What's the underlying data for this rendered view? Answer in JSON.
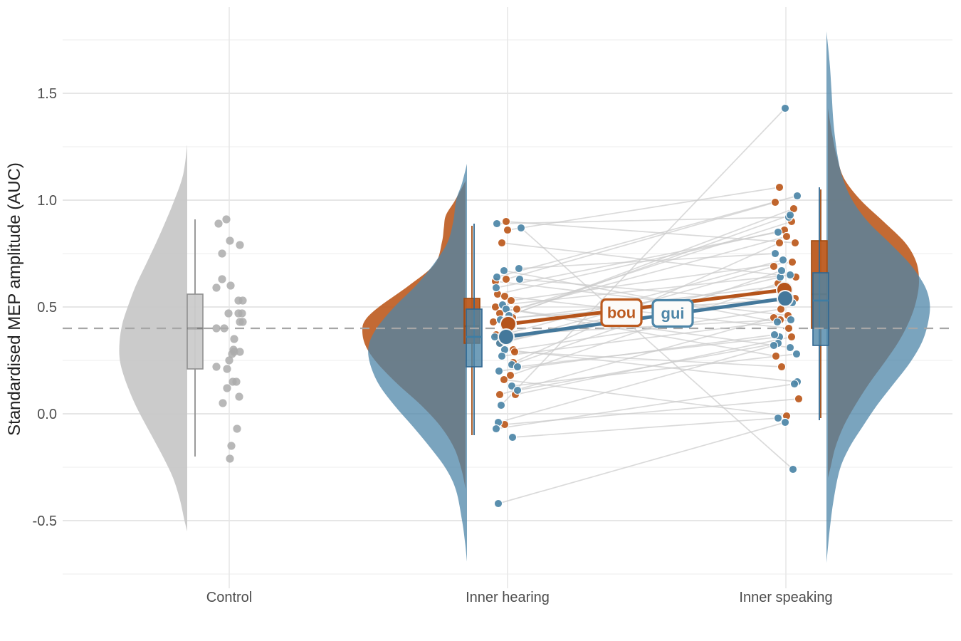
{
  "chart_data": {
    "type": "raincloud",
    "ylabel": "Standardised MEP amplitude (AUC)",
    "categories": [
      "Control",
      "Inner hearing",
      "Inner speaking"
    ],
    "y_tick_labels": [
      "-0.5",
      "0.0",
      "0.5",
      "1.0",
      "1.5"
    ],
    "y_tick_values": [
      -0.5,
      0.0,
      0.5,
      1.0,
      1.5
    ],
    "y_minor_values": [
      -0.75,
      -0.25,
      0.25,
      0.75,
      1.25,
      1.75
    ],
    "ylim": [
      -0.77,
      1.9
    ],
    "reference_line": 0.4,
    "legend_position": "inline-labels",
    "grid": true,
    "colors": {
      "bou": "#BC5A1E",
      "bou_dark": "#A04A10",
      "gui": "#4E86A8",
      "gui_dark": "#2F6690",
      "control": "#ABABAB",
      "control_fill": "#C7C7C7",
      "control_dark": "#8F8F8F",
      "pair_line": "#CCCCCC",
      "reference_dash": "#A6A6A6",
      "grid_major": "#E3E3E3",
      "grid_minor": "#F0F0F0",
      "grid_vertical": "#E6E6E6"
    },
    "groups": [
      {
        "id": "bou",
        "label": "bou"
      },
      {
        "id": "gui",
        "label": "gui"
      }
    ],
    "control": {
      "violin": [
        [
          1.26,
          0
        ],
        [
          1.12,
          0.06
        ],
        [
          1.0,
          0.19
        ],
        [
          0.9,
          0.32
        ],
        [
          0.8,
          0.46
        ],
        [
          0.7,
          0.61
        ],
        [
          0.6,
          0.76
        ],
        [
          0.5,
          0.88
        ],
        [
          0.42,
          0.96
        ],
        [
          0.34,
          1.0
        ],
        [
          0.26,
          1.0
        ],
        [
          0.18,
          0.94
        ],
        [
          0.08,
          0.82
        ],
        [
          0.0,
          0.7
        ],
        [
          -0.1,
          0.53
        ],
        [
          -0.2,
          0.36
        ],
        [
          -0.3,
          0.21
        ],
        [
          -0.4,
          0.11
        ],
        [
          -0.5,
          0.04
        ],
        [
          -0.55,
          0
        ]
      ],
      "box": {
        "q1": 0.21,
        "median": 0.4,
        "q3": 0.56,
        "lo": -0.2,
        "hi": 0.91
      },
      "points": [
        [
          0.91,
          -4
        ],
        [
          0.89,
          -15
        ],
        [
          0.81,
          1
        ],
        [
          0.79,
          15
        ],
        [
          0.75,
          -10
        ],
        [
          0.63,
          -10
        ],
        [
          0.6,
          2
        ],
        [
          0.59,
          -18
        ],
        [
          0.53,
          13
        ],
        [
          0.53,
          19
        ],
        [
          0.47,
          -1
        ],
        [
          0.47,
          13
        ],
        [
          0.47,
          18
        ],
        [
          0.43,
          15
        ],
        [
          0.43,
          19
        ],
        [
          0.4,
          -18
        ],
        [
          0.4,
          -7
        ],
        [
          0.35,
          7
        ],
        [
          0.3,
          6
        ],
        [
          0.29,
          7
        ],
        [
          0.29,
          15
        ],
        [
          0.28,
          4
        ],
        [
          0.25,
          0
        ],
        [
          0.22,
          -18
        ],
        [
          0.21,
          -3
        ],
        [
          0.15,
          5
        ],
        [
          0.15,
          10
        ],
        [
          0.12,
          -3
        ],
        [
          0.08,
          14
        ],
        [
          0.05,
          -9
        ],
        [
          -0.07,
          11
        ],
        [
          -0.15,
          3
        ],
        [
          -0.21,
          1
        ]
      ]
    },
    "inner_hearing": {
      "bou": {
        "violin": [
          [
            1.09,
            0
          ],
          [
            1.0,
            0.1
          ],
          [
            0.93,
            0.19
          ],
          [
            0.87,
            0.21
          ],
          [
            0.8,
            0.23
          ],
          [
            0.7,
            0.3
          ],
          [
            0.6,
            0.55
          ],
          [
            0.5,
            0.84
          ],
          [
            0.44,
            0.97
          ],
          [
            0.39,
            1.0
          ],
          [
            0.32,
            0.97
          ],
          [
            0.24,
            0.86
          ],
          [
            0.14,
            0.66
          ],
          [
            0.04,
            0.43
          ],
          [
            -0.06,
            0.24
          ],
          [
            -0.16,
            0.11
          ],
          [
            -0.26,
            0.04
          ],
          [
            -0.35,
            0
          ]
        ],
        "box": {
          "q1": 0.33,
          "median": 0.41,
          "q3": 0.54,
          "lo": -0.1,
          "hi": 0.88
        },
        "mean": 0.42
      },
      "gui": {
        "violin": [
          [
            1.17,
            0
          ],
          [
            1.08,
            0.05
          ],
          [
            1.0,
            0.11
          ],
          [
            0.9,
            0.14
          ],
          [
            0.8,
            0.2
          ],
          [
            0.7,
            0.34
          ],
          [
            0.6,
            0.52
          ],
          [
            0.5,
            0.74
          ],
          [
            0.4,
            0.92
          ],
          [
            0.32,
            1.0
          ],
          [
            0.24,
            0.99
          ],
          [
            0.14,
            0.9
          ],
          [
            0.04,
            0.74
          ],
          [
            -0.06,
            0.55
          ],
          [
            -0.16,
            0.37
          ],
          [
            -0.26,
            0.21
          ],
          [
            -0.36,
            0.11
          ],
          [
            -0.5,
            0.05
          ],
          [
            -0.6,
            0.02
          ],
          [
            -0.69,
            0
          ]
        ],
        "box": {
          "q1": 0.22,
          "median": 0.36,
          "q3": 0.49,
          "lo": -0.1,
          "hi": 0.89
        },
        "mean": 0.36
      }
    },
    "inner_speaking": {
      "bou": {
        "violin": [
          [
            1.43,
            0
          ],
          [
            1.3,
            0.05
          ],
          [
            1.2,
            0.1
          ],
          [
            1.1,
            0.18
          ],
          [
            1.0,
            0.36
          ],
          [
            0.9,
            0.61
          ],
          [
            0.8,
            0.85
          ],
          [
            0.71,
            0.97
          ],
          [
            0.62,
            1.0
          ],
          [
            0.53,
            0.97
          ],
          [
            0.44,
            0.9
          ],
          [
            0.34,
            0.78
          ],
          [
            0.24,
            0.62
          ],
          [
            0.14,
            0.45
          ],
          [
            0.04,
            0.3
          ],
          [
            -0.06,
            0.17
          ],
          [
            -0.16,
            0.08
          ],
          [
            -0.25,
            0.03
          ],
          [
            -0.3,
            0
          ]
        ],
        "box": {
          "q1": 0.4,
          "median": 0.56,
          "q3": 0.81,
          "lo": -0.02,
          "hi": 1.05
        },
        "mean": 0.58
      },
      "gui": {
        "violin": [
          [
            1.79,
            0
          ],
          [
            1.65,
            0.03
          ],
          [
            1.5,
            0.05
          ],
          [
            1.35,
            0.07
          ],
          [
            1.2,
            0.11
          ],
          [
            1.1,
            0.16
          ],
          [
            1.0,
            0.25
          ],
          [
            0.9,
            0.4
          ],
          [
            0.8,
            0.61
          ],
          [
            0.7,
            0.81
          ],
          [
            0.6,
            0.95
          ],
          [
            0.52,
            1.0
          ],
          [
            0.44,
            0.99
          ],
          [
            0.34,
            0.93
          ],
          [
            0.24,
            0.81
          ],
          [
            0.14,
            0.65
          ],
          [
            0.04,
            0.49
          ],
          [
            -0.06,
            0.35
          ],
          [
            -0.16,
            0.22
          ],
          [
            -0.26,
            0.13
          ],
          [
            -0.4,
            0.07
          ],
          [
            -0.55,
            0.03
          ],
          [
            -0.7,
            0
          ]
        ],
        "box": {
          "q1": 0.32,
          "median": 0.53,
          "q3": 0.66,
          "lo": -0.03,
          "hi": 1.06
        },
        "mean": 0.54
      }
    },
    "pairs": {
      "bou": [
        [
          0.9,
          -2,
          0.8,
          13
        ],
        [
          0.86,
          0,
          1.06,
          -9
        ],
        [
          0.8,
          -8,
          0.64,
          14
        ],
        [
          0.63,
          -2,
          0.99,
          -15
        ],
        [
          0.62,
          -17,
          0.46,
          3
        ],
        [
          0.56,
          -14,
          0.86,
          -2
        ],
        [
          0.55,
          -4,
          0.4,
          4
        ],
        [
          0.53,
          5,
          0.71,
          9
        ],
        [
          0.5,
          -17,
          0.27,
          -14
        ],
        [
          0.49,
          13,
          0.9,
          8
        ],
        [
          0.47,
          -11,
          0.83,
          1
        ],
        [
          0.45,
          7,
          0.54,
          13
        ],
        [
          0.43,
          -20,
          0.96,
          11
        ],
        [
          0.37,
          -16,
          0.44,
          -8
        ],
        [
          0.33,
          -11,
          0.69,
          -17
        ],
        [
          0.3,
          8,
          0.49,
          -7
        ],
        [
          0.29,
          10,
          0.22,
          -6
        ],
        [
          0.24,
          8,
          0.8,
          -9
        ],
        [
          0.18,
          4,
          0.61,
          -11
        ],
        [
          0.16,
          -5,
          -0.01,
          1
        ],
        [
          0.09,
          -11,
          0.45,
          -17
        ],
        [
          0.09,
          11,
          0.36,
          8
        ],
        [
          -0.05,
          -4,
          0.07,
          18
        ]
      ],
      "gui": [
        [
          0.89,
          -15,
          0.92,
          4
        ],
        [
          0.87,
          19,
          -0.26,
          10
        ],
        [
          0.68,
          16,
          0.75,
          -15
        ],
        [
          0.67,
          -5,
          0.43,
          -12
        ],
        [
          0.64,
          -15,
          1.02,
          16
        ],
        [
          0.63,
          17,
          0.52,
          9
        ],
        [
          0.59,
          -16,
          0.85,
          -11
        ],
        [
          0.51,
          -7,
          0.65,
          6
        ],
        [
          0.49,
          -2,
          0.31,
          6
        ],
        [
          0.46,
          2,
          0.93,
          6
        ],
        [
          0.44,
          -10,
          0.6,
          -3
        ],
        [
          0.36,
          -18,
          0.72,
          -4
        ],
        [
          0.33,
          -11,
          0.64,
          -8
        ],
        [
          0.3,
          -4,
          0.15,
          16
        ],
        [
          0.27,
          -8,
          0.44,
          7
        ],
        [
          0.23,
          6,
          0.67,
          -6
        ],
        [
          0.22,
          14,
          0.36,
          -9
        ],
        [
          0.2,
          -12,
          0.37,
          -16
        ],
        [
          0.13,
          6,
          0.28,
          15
        ],
        [
          0.11,
          14,
          0.33,
          -11
        ],
        [
          0.04,
          -9,
          1.43,
          -1
        ],
        [
          -0.04,
          -13,
          0.32,
          -17
        ],
        [
          -0.07,
          -16,
          0.14,
          12
        ],
        [
          -0.11,
          7,
          -0.02,
          -11
        ],
        [
          -0.42,
          -13,
          -0.04,
          -1
        ]
      ]
    }
  }
}
